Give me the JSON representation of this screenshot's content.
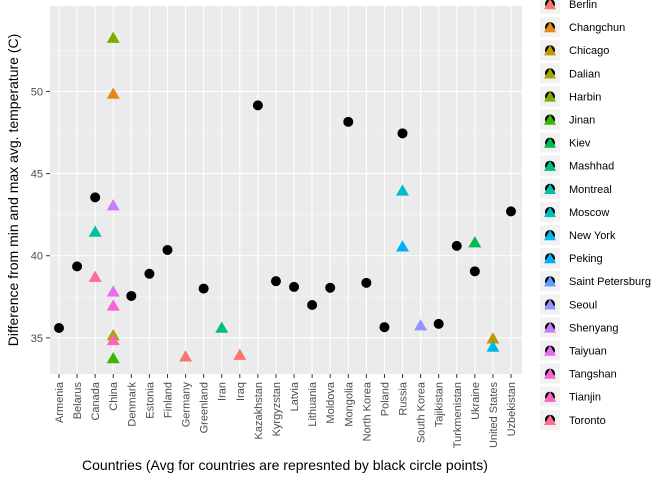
{
  "chart_data": {
    "type": "scatter",
    "title": "",
    "xlabel": "Countries (Avg for countries are represnted by black circle points)",
    "ylabel": "Difference from min and max avg. temperature (C)",
    "categories": [
      "Armenia",
      "Belarus",
      "Canada",
      "China",
      "Denmark",
      "Estonia",
      "Finland",
      "Germany",
      "Greenland",
      "Iran",
      "Iraq",
      "Kazakhstan",
      "Kyrgyzstan",
      "Latvia",
      "Lithuania",
      "Moldova",
      "Mongolia",
      "North Korea",
      "Poland",
      "Russia",
      "South Korea",
      "Tajikistan",
      "Turkmenistan",
      "Ukraine",
      "United States",
      "Uzbekistan"
    ],
    "ylim": [
      32.8,
      55.2
    ],
    "yticks": [
      35,
      40,
      45,
      50
    ],
    "grid": true,
    "legend_position": "right",
    "country_avg_color": "#000000",
    "country_averages": [
      {
        "x": "Armenia",
        "y": 35.6
      },
      {
        "x": "Belarus",
        "y": 39.35
      },
      {
        "x": "Canada",
        "y": 43.55
      },
      {
        "x": "Denmark",
        "y": 37.55
      },
      {
        "x": "Estonia",
        "y": 38.9
      },
      {
        "x": "Finland",
        "y": 40.35
      },
      {
        "x": "Greenland",
        "y": 38.0
      },
      {
        "x": "Kazakhstan",
        "y": 49.15
      },
      {
        "x": "Kyrgyzstan",
        "y": 38.45
      },
      {
        "x": "Latvia",
        "y": 38.1
      },
      {
        "x": "Lithuania",
        "y": 37.0
      },
      {
        "x": "Moldova",
        "y": 38.05
      },
      {
        "x": "Mongolia",
        "y": 48.15
      },
      {
        "x": "North Korea",
        "y": 38.35
      },
      {
        "x": "Poland",
        "y": 35.65
      },
      {
        "x": "Russia",
        "y": 47.45
      },
      {
        "x": "Tajikistan",
        "y": 35.85
      },
      {
        "x": "Turkmenistan",
        "y": 40.6
      },
      {
        "x": "Ukraine",
        "y": 39.05
      },
      {
        "x": "Uzbekistan",
        "y": 42.7
      }
    ],
    "city_series": [
      {
        "name": "Berlin",
        "color": "#F8766D",
        "points": [
          {
            "x": "Germany",
            "y": 33.9
          }
        ]
      },
      {
        "name": "Changchun",
        "color": "#E7861B",
        "points": [
          {
            "x": "China",
            "y": 49.9
          }
        ]
      },
      {
        "name": "Chicago",
        "color": "#C09B00",
        "points": [
          {
            "x": "United States",
            "y": 35.0
          }
        ]
      },
      {
        "name": "Dalian",
        "color": "#A3A500",
        "points": [
          {
            "x": "China",
            "y": 35.2
          }
        ]
      },
      {
        "name": "Harbin",
        "color": "#7CAE00",
        "points": [
          {
            "x": "China",
            "y": 53.3
          }
        ]
      },
      {
        "name": "Jinan",
        "color": "#39B600",
        "points": [
          {
            "x": "China",
            "y": 33.8
          }
        ]
      },
      {
        "name": "Kiev",
        "color": "#00BB4E",
        "points": [
          {
            "x": "Ukraine",
            "y": 40.85
          }
        ]
      },
      {
        "name": "Mashhad",
        "color": "#00BF7D",
        "points": [
          {
            "x": "Iran",
            "y": 35.65
          }
        ]
      },
      {
        "name": "Montreal",
        "color": "#00C1A3",
        "points": [
          {
            "x": "Canada",
            "y": 41.5
          }
        ]
      },
      {
        "name": "Moscow",
        "color": "#00BFC4",
        "points": [
          {
            "x": "Russia",
            "y": 44.0
          }
        ]
      },
      {
        "name": "New York",
        "color": "#00B9E3",
        "points": [
          {
            "x": "United States",
            "y": 34.5
          }
        ]
      },
      {
        "name": "Peking",
        "color": "#00ADFA",
        "points": [
          {
            "x": "Russia",
            "y": 40.6
          }
        ]
      },
      {
        "name": "Saint Petersburg",
        "color": "#619CFF",
        "points": []
      },
      {
        "name": "Seoul",
        "color": "#9590FF",
        "points": [
          {
            "x": "South Korea",
            "y": 35.8
          }
        ]
      },
      {
        "name": "Shenyang",
        "color": "#C77CFF",
        "points": [
          {
            "x": "China",
            "y": 43.1
          }
        ]
      },
      {
        "name": "Taiyuan",
        "color": "#E76BF3",
        "points": [
          {
            "x": "China",
            "y": 37.85
          }
        ]
      },
      {
        "name": "Tangshan",
        "color": "#FA62DB",
        "points": [
          {
            "x": "China",
            "y": 37.0
          }
        ]
      },
      {
        "name": "Tianjin",
        "color": "#FF62BC",
        "points": [
          {
            "x": "China",
            "y": 34.9
          }
        ]
      },
      {
        "name": "Toronto",
        "color": "#FF6C91",
        "points": [
          {
            "x": "Canada",
            "y": 38.75
          }
        ]
      },
      {
        "name": "",
        "color": "#F8766D",
        "points": [
          {
            "x": "Iraq",
            "y": 34.0
          }
        ]
      }
    ]
  }
}
